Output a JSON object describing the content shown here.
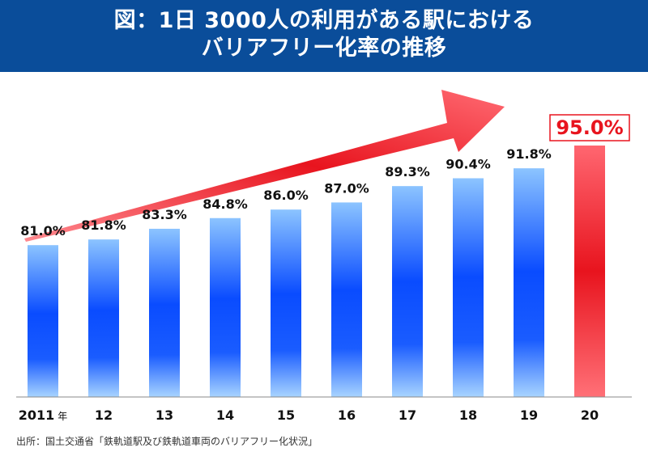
{
  "header": {
    "title_line1": "図：1日 3000人の利用がある駅における",
    "title_line2": "バリアフリー化率の推移",
    "background": "#0a4d9a"
  },
  "source": "出所：国土交通省「鉄軌道駅及び鉄軌道車両のバリアフリー化状況」",
  "chart_data": {
    "type": "bar",
    "title": "図：1日 3000人の利用がある駅における バリアフリー化率の推移",
    "categories": [
      "2011",
      "12",
      "13",
      "14",
      "15",
      "16",
      "17",
      "18",
      "19",
      "20"
    ],
    "category_suffix_first": "年",
    "values": [
      81.0,
      81.8,
      83.3,
      84.8,
      86.0,
      87.0,
      89.3,
      90.4,
      91.8,
      95.0
    ],
    "value_labels": [
      "81.0%",
      "81.8%",
      "83.3%",
      "84.8%",
      "86.0%",
      "87.0%",
      "89.3%",
      "90.4%",
      "91.8%",
      "95.0%"
    ],
    "ylim": [
      75,
      95
    ],
    "highlight_index": 9,
    "colors": {
      "bar": "#0a4cff",
      "bar_light": "#8cc4ff",
      "highlight": "#e8141e",
      "highlight_light": "#ff6670",
      "arrow": "#e8141e"
    },
    "trend_arrow": true,
    "grid": false
  }
}
